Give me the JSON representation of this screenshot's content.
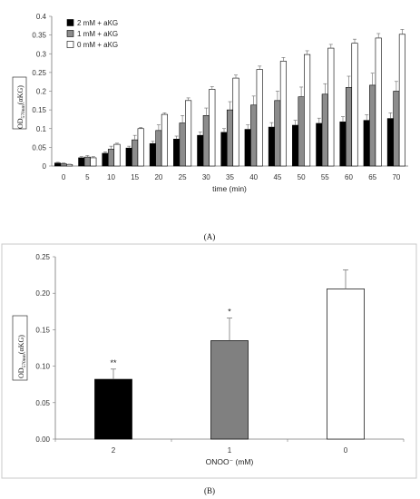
{
  "chart_data": [
    {
      "type": "bar",
      "panel_label": "(A)",
      "xlabel": "time (min)",
      "ylabel_main": "OD",
      "ylabel_sub": "570nm",
      "ylabel_suffix": "(αKG)",
      "ylim": [
        0,
        0.4
      ],
      "yticks": [
        "0",
        "0.05",
        "0.1",
        "0.15",
        "0.2",
        "0.25",
        "0.3",
        "0.35",
        "0.4"
      ],
      "legend_position": "top-left",
      "categories": [
        "0",
        "5",
        "10",
        "15",
        "20",
        "25",
        "30",
        "35",
        "40",
        "45",
        "50",
        "55",
        "60",
        "65",
        "70"
      ],
      "series": [
        {
          "name": "2 mM + aKG",
          "color": "#000000",
          "values": [
            0.008,
            0.022,
            0.034,
            0.048,
            0.06,
            0.072,
            0.082,
            0.09,
            0.098,
            0.104,
            0.109,
            0.114,
            0.118,
            0.122,
            0.127
          ],
          "errors": [
            0.002,
            0.003,
            0.004,
            0.005,
            0.006,
            0.008,
            0.009,
            0.01,
            0.012,
            0.012,
            0.013,
            0.014,
            0.014,
            0.015,
            0.015
          ]
        },
        {
          "name": "1 mM + aKG",
          "color": "#8c8c8c",
          "values": [
            0.006,
            0.024,
            0.045,
            0.07,
            0.095,
            0.115,
            0.135,
            0.15,
            0.163,
            0.175,
            0.185,
            0.192,
            0.21,
            0.216,
            0.2
          ],
          "errors": [
            0.002,
            0.004,
            0.008,
            0.012,
            0.015,
            0.02,
            0.02,
            0.022,
            0.024,
            0.025,
            0.026,
            0.028,
            0.03,
            0.032,
            0.026
          ]
        },
        {
          "name": "0 mM + aKG",
          "color": "#ffffff",
          "values": [
            0.004,
            0.022,
            0.058,
            0.1,
            0.138,
            0.175,
            0.205,
            0.235,
            0.258,
            0.28,
            0.298,
            0.315,
            0.328,
            0.342,
            0.352
          ],
          "errors": [
            0.001,
            0.003,
            0.003,
            0.003,
            0.004,
            0.007,
            0.007,
            0.008,
            0.009,
            0.01,
            0.01,
            0.01,
            0.011,
            0.012,
            0.013
          ]
        }
      ]
    },
    {
      "type": "bar",
      "panel_label": "(B)",
      "xlabel": "ONOO⁻ (mM)",
      "ylabel_main": "OD",
      "ylabel_sub": "570nm",
      "ylabel_suffix": "(αKG)",
      "ylim": [
        0,
        0.25
      ],
      "yticks": [
        "0.00",
        "0.05",
        "0.10",
        "0.15",
        "0.20",
        "0.25"
      ],
      "categories": [
        "2",
        "1",
        "0"
      ],
      "values": [
        0.082,
        0.135,
        0.206
      ],
      "errors": [
        0.014,
        0.031,
        0.026
      ],
      "colors": [
        "#000000",
        "#808080",
        "#ffffff"
      ],
      "significance": [
        "**",
        "*",
        ""
      ]
    }
  ]
}
